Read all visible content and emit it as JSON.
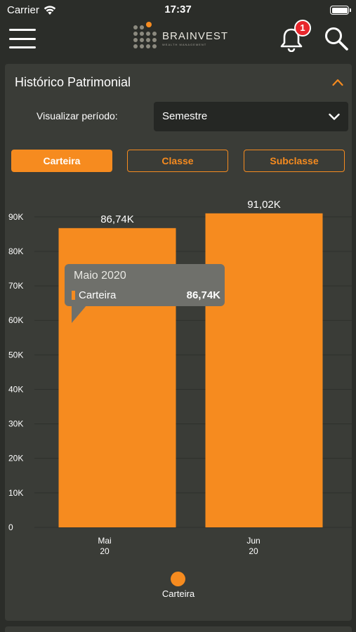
{
  "status_bar": {
    "carrier": "Carrier",
    "time": "17:37"
  },
  "header": {
    "logo_name": "BRAINVEST",
    "logo_sub": "WEALTH MANAGEMENT",
    "notification_count": "1"
  },
  "card": {
    "title": "Histórico Patrimonial",
    "period_label": "Visualizar período:",
    "period_value": "Semestre",
    "tabs": [
      {
        "label": "Carteira",
        "active": true
      },
      {
        "label": "Classe",
        "active": false
      },
      {
        "label": "Subclasse",
        "active": false
      }
    ]
  },
  "tooltip": {
    "title": "Maio 2020",
    "series": "Carteira",
    "value": "86,74K"
  },
  "colors": {
    "accent": "#f68b1f",
    "background": "#2b2d29",
    "card": "#3a3c37",
    "badge": "#e8262c"
  },
  "chart_data": {
    "type": "bar",
    "categories": [
      "Mai 20",
      "Jun 20"
    ],
    "category_lines": [
      [
        "Mai",
        "20"
      ],
      [
        "Jun",
        "20"
      ]
    ],
    "values": [
      86.74,
      91.02
    ],
    "data_labels": [
      "86,74K",
      "91,02K"
    ],
    "yticks": [
      "0",
      "10K",
      "20K",
      "30K",
      "40K",
      "50K",
      "60K",
      "70K",
      "80K",
      "90K"
    ],
    "ylim": [
      0,
      92
    ],
    "unit": "K",
    "grid": true,
    "legend": [
      "Carteira"
    ],
    "legend_position": "bottom",
    "series": [
      {
        "name": "Carteira",
        "values": [
          86.74,
          91.02
        ]
      }
    ]
  }
}
